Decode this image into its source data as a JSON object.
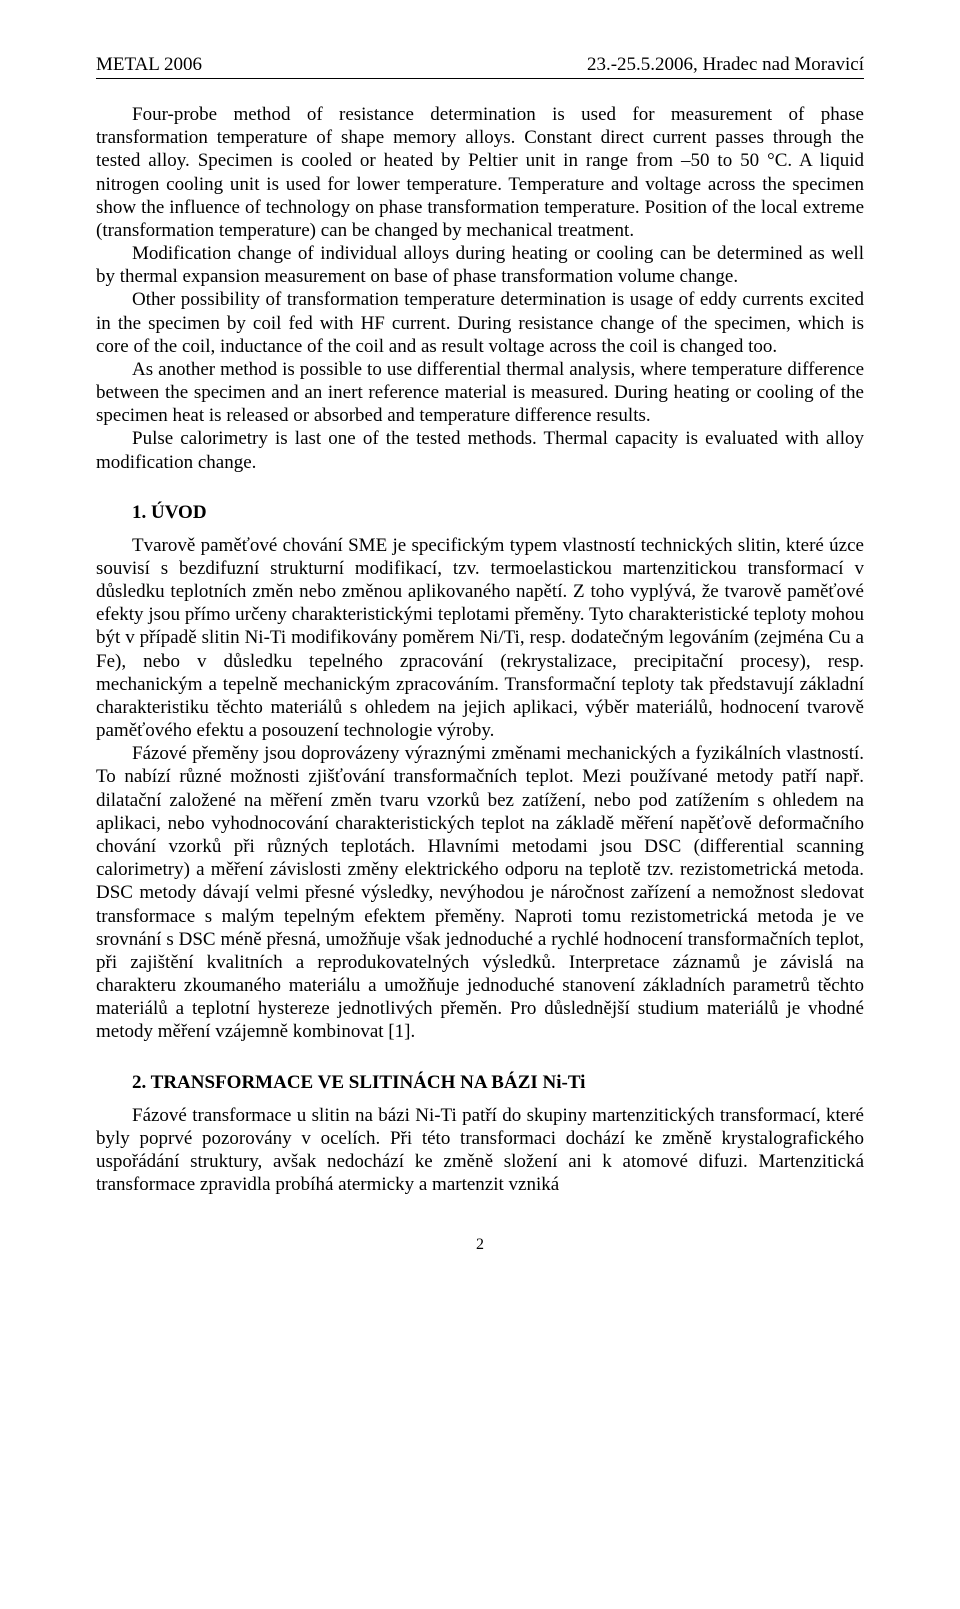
{
  "header": {
    "left": "METAL 2006",
    "right": "23.-25.5.2006, Hradec nad Moravicí"
  },
  "body": {
    "p1": "Four-probe method of resistance determination is used for measurement of phase transformation temperature of shape memory alloys. Constant direct current passes through the tested alloy. Specimen is cooled or heated by Peltier unit in range from –50 to 50 °C. A liquid nitrogen cooling unit is used for lower temperature. Temperature and voltage across the specimen show the influence of technology on phase transformation temperature. Position of the local extreme (transformation temperature) can be changed by mechanical treatment.",
    "p2": "Modification change of individual alloys during heating or cooling can be determined as well by thermal expansion measurement on base of phase transformation volume change.",
    "p3": "Other possibility of transformation temperature determination is usage of eddy currents excited in the specimen by coil fed with HF current. During resistance change of the specimen, which is core of the coil, inductance of the coil and as result voltage across the coil is changed too.",
    "p4": "As another method is possible to use differential thermal analysis, where temperature difference between the specimen and an inert reference material is measured. During heating or cooling of the specimen heat is released or absorbed and temperature difference results.",
    "p5": "Pulse calorimetry is last one of the tested methods. Thermal capacity is evaluated with alloy modification change."
  },
  "section1": {
    "heading": "1.   ÚVOD",
    "p1": "Tvarově paměťové chování SME je specifickým typem vlastností technických slitin, které úzce souvisí s bezdifuzní strukturní modifikací, tzv. termoelastickou martenzitickou transformací v důsledku teplotních změn nebo změnou aplikovaného napětí. Z toho vyplývá, že tvarově paměťové efekty jsou přímo určeny charakteristickými teplotami přeměny. Tyto charakteristické teploty mohou být v případě slitin Ni-Ti modifikovány poměrem Ni/Ti, resp. dodatečným legováním (zejména Cu a Fe), nebo v důsledku tepelného zpracování (rekrystalizace, precipitační procesy), resp. mechanickým a tepelně mechanickým zpracováním. Transformační teploty tak představují základní charakteristiku těchto materiálů s ohledem na jejich aplikaci, výběr materiálů, hodnocení tvarově paměťového efektu a posouzení technologie výroby.",
    "p2": "Fázové přeměny jsou doprovázeny výraznými změnami mechanických a fyzikálních vlastností. To nabízí různé možnosti zjišťování transformačních teplot. Mezi používané metody patří např. dilatační založené na měření změn tvaru vzorků bez zatížení, nebo pod zatížením s ohledem na aplikaci, nebo vyhodnocování charakteristických teplot na základě měření napěťově deformačního chování vzorků při různých teplotách. Hlavními metodami jsou DSC (differential scanning calorimetry) a měření závislosti změny elektrického odporu na teplotě tzv. rezistometrická metoda. DSC metody dávají velmi přesné výsledky, nevýhodou je náročnost zařízení a nemožnost sledovat transformace s malým tepelným efektem přeměny. Naproti tomu rezistometrická metoda je ve srovnání s DSC méně přesná, umožňuje však jednoduché a rychlé hodnocení transformačních teplot, při zajištění kvalitních a reprodukovatelných výsledků. Interpretace záznamů je závislá na charakteru zkoumaného materiálu a umožňuje jednoduché stanovení základních parametrů těchto materiálů a teplotní hystereze jednotlivých přeměn. Pro důslednější studium materiálů je vhodné metody měření vzájemně kombinovat [1]."
  },
  "section2": {
    "heading": "2.   TRANSFORMACE VE SLITINÁCH NA BÁZI Ni-Ti",
    "p1": "Fázové transformace u slitin na bázi Ni-Ti patří do skupiny martenzitických transformací, které byly poprvé pozorovány v ocelích. Při této transformaci dochází ke změně krystalografického uspořádání struktury, avšak nedochází ke změně složení ani k atomové difuzi. Martenzitická transformace zpravidla probíhá atermicky a martenzit vzniká"
  },
  "footer": {
    "page": "2"
  }
}
